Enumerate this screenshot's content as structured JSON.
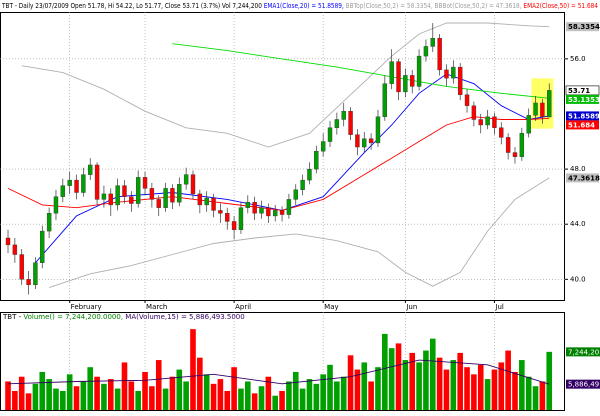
{
  "chart_data": [
    {
      "type": "candlestick",
      "title": "TBT - Daily 23/07/2009 Open 51.78, Hi 54.22, Lo 51.77, Close 53.71 (3.7%) Vol 7,244,200",
      "xlim": [
        -1.17,
        81.3
      ],
      "xticks": [
        {
          "value": 9,
          "label": "February"
        },
        {
          "value": 20,
          "label": "March"
        },
        {
          "value": 33,
          "label": "April"
        },
        {
          "value": 46,
          "label": "May"
        },
        {
          "value": 58,
          "label": "Jun"
        },
        {
          "value": 71,
          "label": "Jul"
        }
      ],
      "ylim": [
        38.5,
        59.4
      ],
      "yticks": [
        {
          "value": 40,
          "label": "40.0"
        },
        {
          "value": 44,
          "label": "44.0"
        },
        {
          "value": 48,
          "label": "48.0"
        },
        {
          "value": 56,
          "label": "56.0"
        }
      ],
      "grid": true,
      "up_color": "#00a000",
      "down_color": "#ff0000",
      "highlight_color": "#ffff66",
      "open": [
        43.0,
        42.5,
        41.8,
        40.0,
        39.6,
        41.2,
        43.5,
        44.8,
        46.0,
        46.8,
        47.2,
        46.3,
        47.6,
        48.3,
        45.8,
        46.2,
        45.4,
        46.8,
        46.0,
        45.5,
        47.4,
        46.6,
        45.8,
        45.2,
        46.6,
        45.6,
        46.9,
        47.6,
        46.2,
        45.4,
        45.9,
        45.0,
        44.8,
        44.2,
        43.6,
        45.2,
        45.6,
        44.8,
        45.2,
        44.6,
        45.0,
        44.7,
        45.8,
        46.5,
        47.2,
        48.0,
        49.3,
        50.0,
        51.0,
        51.6,
        52.2,
        50.5,
        49.6,
        50.2,
        49.9,
        51.8,
        54.2,
        55.8,
        53.6,
        54.8,
        54.0,
        56.2,
        56.9,
        57.5,
        55.2,
        54.6,
        55.4,
        53.4,
        52.6,
        51.6,
        51.2,
        51.8,
        51.0,
        50.3,
        49.2,
        48.9,
        50.6,
        51.9,
        52.8,
        51.78
      ],
      "high": [
        43.6,
        43.0,
        42.2,
        40.6,
        41.6,
        43.9,
        45.2,
        46.5,
        47.3,
        47.8,
        47.6,
        48.1,
        48.8,
        48.5,
        46.8,
        46.6,
        47.3,
        47.2,
        46.4,
        47.9,
        47.8,
        47.0,
        46.1,
        47.0,
        46.9,
        47.4,
        48.1,
        47.9,
        46.5,
        46.4,
        46.2,
        45.5,
        45.2,
        44.6,
        45.6,
        46.1,
        46.0,
        45.7,
        45.5,
        45.4,
        45.3,
        46.2,
        46.9,
        47.6,
        48.5,
        49.7,
        50.6,
        51.5,
        52.1,
        52.8,
        52.5,
        50.9,
        50.7,
        50.6,
        52.3,
        54.8,
        56.7,
        56.0,
        55.3,
        55.2,
        56.7,
        57.4,
        58.6,
        57.8,
        55.6,
        55.9,
        55.7,
        53.8,
        52.9,
        52.0,
        52.3,
        52.1,
        51.4,
        50.6,
        49.6,
        51.0,
        52.4,
        53.3,
        53.1,
        54.22
      ],
      "low": [
        41.9,
        41.2,
        39.6,
        38.9,
        39.3,
        40.8,
        43.0,
        44.3,
        45.6,
        46.2,
        45.8,
        46.0,
        47.2,
        45.4,
        45.2,
        44.6,
        45.0,
        45.5,
        44.9,
        45.2,
        46.1,
        45.2,
        44.6,
        44.9,
        45.1,
        45.3,
        46.5,
        45.8,
        44.8,
        44.9,
        44.5,
        44.1,
        43.6,
        42.9,
        43.3,
        44.8,
        44.3,
        44.4,
        44.1,
        44.2,
        44.2,
        44.4,
        45.4,
        46.1,
        46.9,
        47.7,
        48.9,
        49.6,
        50.5,
        51.1,
        50.1,
        49.0,
        49.2,
        49.4,
        49.6,
        51.5,
        53.8,
        53.0,
        53.2,
        53.5,
        53.7,
        55.8,
        56.5,
        54.8,
        54.0,
        54.2,
        53.0,
        52.1,
        51.1,
        50.6,
        50.9,
        50.5,
        49.8,
        48.7,
        48.4,
        48.6,
        50.3,
        51.5,
        51.3,
        51.77
      ],
      "close": [
        42.5,
        41.8,
        40.0,
        39.6,
        41.2,
        43.5,
        44.8,
        46.0,
        46.8,
        47.2,
        46.3,
        47.6,
        48.3,
        45.8,
        46.2,
        45.4,
        46.8,
        46.0,
        45.5,
        47.4,
        46.6,
        45.8,
        45.2,
        46.6,
        45.6,
        46.9,
        47.6,
        46.2,
        45.4,
        45.9,
        45.0,
        44.8,
        44.2,
        43.6,
        45.2,
        45.6,
        44.8,
        45.2,
        44.6,
        45.0,
        44.7,
        45.8,
        46.5,
        47.2,
        48.0,
        49.3,
        50.0,
        51.0,
        51.6,
        52.2,
        50.5,
        49.6,
        50.2,
        49.9,
        51.8,
        54.2,
        55.8,
        53.6,
        54.8,
        54.0,
        56.2,
        56.9,
        57.5,
        55.2,
        54.6,
        55.4,
        53.4,
        52.6,
        51.6,
        51.2,
        51.8,
        51.0,
        50.3,
        49.2,
        48.9,
        50.6,
        51.9,
        52.8,
        51.8,
        53.71
      ],
      "lines": [
        {
          "name": "EMA1(Close,20) = 51.8589,",
          "color": "#0000ff",
          "label_color": "#0000cc",
          "x": [
            4,
            10,
            16,
            24,
            32,
            40,
            46,
            52,
            56,
            60,
            64,
            68,
            72,
            76,
            79
          ],
          "values": [
            41.2,
            44.6,
            46.0,
            46.3,
            45.8,
            45.0,
            46.0,
            49.2,
            51.2,
            53.5,
            54.9,
            54.2,
            52.6,
            51.6,
            51.8589
          ]
        },
        {
          "name": "BBTop(Close,50,2) = 58.3354,",
          "color": "#b0b0b0",
          "label_color": "#c0c0c0",
          "x": [
            2,
            8,
            14,
            20,
            26,
            32,
            38,
            44,
            50,
            56,
            60,
            64,
            70,
            76,
            79
          ],
          "values": [
            55.5,
            55.0,
            53.8,
            52.2,
            51.0,
            50.6,
            49.6,
            50.6,
            53.4,
            56.2,
            57.8,
            58.6,
            58.6,
            58.4,
            58.3354
          ]
        },
        {
          "name": "BBBot(Close,50,2) = 47.3618,",
          "color": "#b0b0b0",
          "label_color": "#c0c0c0",
          "x": [
            6,
            12,
            18,
            24,
            30,
            36,
            42,
            48,
            54,
            58,
            62,
            66,
            70,
            74,
            79
          ],
          "values": [
            39.4,
            40.4,
            41.0,
            41.8,
            42.6,
            43.0,
            43.3,
            42.8,
            42.0,
            40.5,
            39.5,
            40.5,
            43.5,
            45.8,
            47.3618
          ]
        },
        {
          "name": "EMA2(Close,50) = 51.684",
          "color": "#ff0000",
          "label_color": "#ff0000",
          "x": [
            0,
            5,
            10,
            16,
            24,
            32,
            40,
            46,
            52,
            56,
            60,
            64,
            68,
            72,
            76,
            79
          ],
          "values": [
            46.6,
            45.4,
            45.2,
            45.6,
            46.0,
            45.5,
            45.0,
            45.8,
            47.6,
            48.8,
            50.0,
            51.2,
            51.8,
            51.6,
            51.6,
            51.684
          ]
        },
        {
          "color": "#00dd00",
          "label_color": "#00bb00",
          "x": [
            24,
            32,
            40,
            48,
            56,
            64,
            72,
            79
          ],
          "values": [
            57.1,
            56.6,
            56.0,
            55.4,
            54.7,
            54.0,
            53.5,
            53.1353
          ]
        }
      ]
    },
    {
      "type": "volume",
      "title": "TBT",
      "name": "Volume() = 7,244,200.0000,",
      "color": "#008000",
      "ylim": [
        4800000,
        8500000
      ],
      "values": [
        6000000,
        5600000,
        6200000,
        5500000,
        5900000,
        6400000,
        6100000,
        5700000,
        5600000,
        6300000,
        5800000,
        6000000,
        6600000,
        6200000,
        5900000,
        6100000,
        5700000,
        6800000,
        6000000,
        5600000,
        6400000,
        5800000,
        6900000,
        5700000,
        6200000,
        6500000,
        6000000,
        8200000,
        7000000,
        6300000,
        5900000,
        6100000,
        5600000,
        6600000,
        5700000,
        6000000,
        5500000,
        5800000,
        6200000,
        5400000,
        5600000,
        6000000,
        6400000,
        5700000,
        6100000,
        5900000,
        6300000,
        6700000,
        6000000,
        6200000,
        7100000,
        6500000,
        6800000,
        6000000,
        6600000,
        8000000,
        7400000,
        7600000,
        6900000,
        7200000,
        6800000,
        7300000,
        7800000,
        7000000,
        6500000,
        6900000,
        7200000,
        6600000,
        6300000,
        6700000,
        6100000,
        6500000,
        6800000,
        7300000,
        6400000,
        6900000,
        6200000,
        5800000,
        6000000,
        7244200
      ],
      "last_label": "7,244,20",
      "ma": {
        "name": "MA(Volume,15) = 5,886,493.5000",
        "color": "#330066",
        "x": [
          0,
          10,
          20,
          30,
          40,
          50,
          60,
          70,
          79
        ],
        "values": [
          5900000,
          6000000,
          6050000,
          6300000,
          5900000,
          6200000,
          6900000,
          6700000,
          5886493.5
        ],
        "last_label": "5,886,49"
      }
    }
  ]
}
